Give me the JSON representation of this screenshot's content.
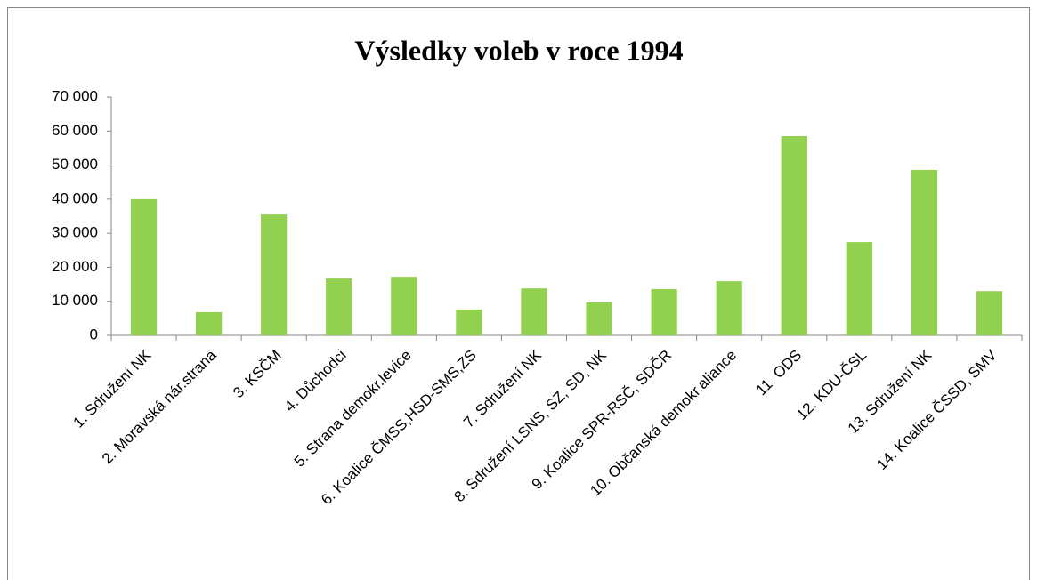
{
  "chart_data": {
    "type": "bar",
    "title": "Výsledky voleb v roce 1994",
    "categories": [
      "1. Sdružení NK",
      "2. Moravská nár.strana",
      "3. KSČM",
      "4. Důchodci",
      "5. Strana demokr.levice",
      "6. Koalice ČMSS,HSD-SMS,ZS",
      "7. Sdružení NK",
      "8. Sdružení LSNS, SZ, SD, NK",
      "9. Koalice SPR-RSČ, SDČR",
      "10. Občanská demokr.aliance",
      "11. ODS",
      "12. KDU-ČSL",
      "13. Sdružení NK",
      "14. Koalice ČSSD, SMV"
    ],
    "values": [
      40000,
      6800,
      35500,
      16700,
      17200,
      7600,
      13800,
      9700,
      13600,
      15900,
      58500,
      27400,
      48600,
      13000
    ],
    "color": "#92d050",
    "ylim": [
      0,
      70000
    ],
    "yticks": [
      {
        "value": 0,
        "label": "0"
      },
      {
        "value": 10000,
        "label": "10 000"
      },
      {
        "value": 20000,
        "label": "20 000"
      },
      {
        "value": 30000,
        "label": "30 000"
      },
      {
        "value": 40000,
        "label": "40 000"
      },
      {
        "value": 50000,
        "label": "50 000"
      },
      {
        "value": 60000,
        "label": "60 000"
      },
      {
        "value": 70000,
        "label": "70 000"
      }
    ],
    "grid": false
  }
}
